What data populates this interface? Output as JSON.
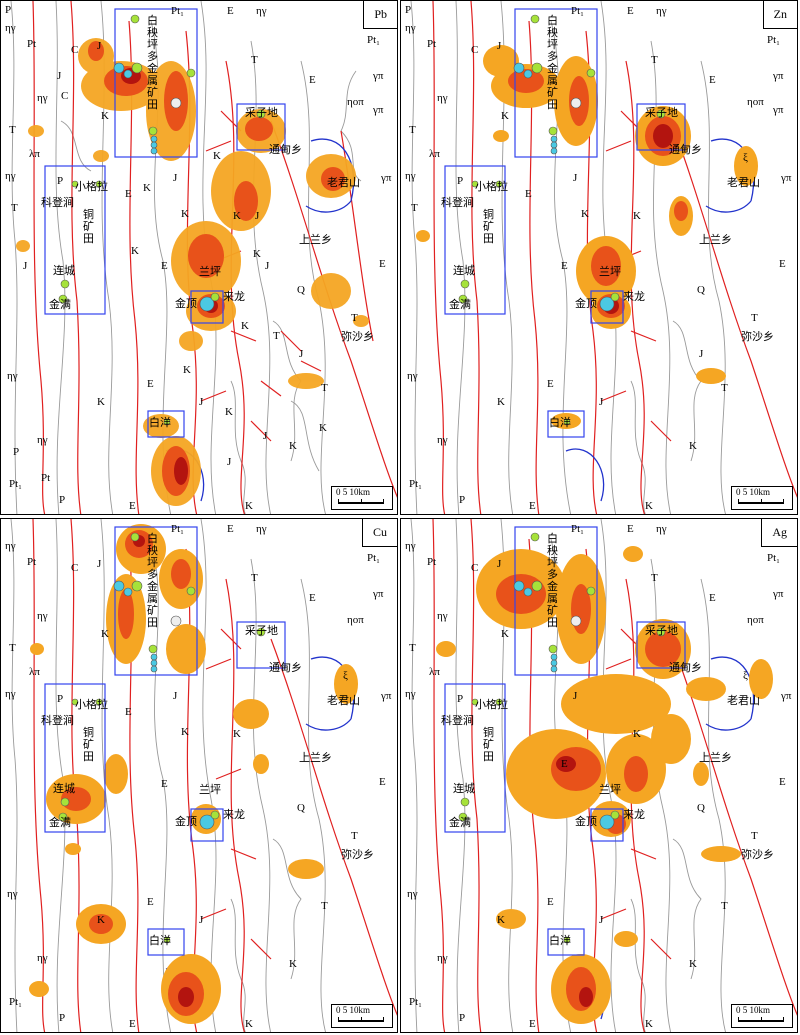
{
  "panels": [
    {
      "element": "Pb"
    },
    {
      "element": "Zn"
    },
    {
      "element": "Cu"
    },
    {
      "element": "Ag"
    }
  ],
  "scale_label": "0 5 10km",
  "place_names": {
    "baiyangping": "白秧坪多金属矿田",
    "caizidi": "采子地",
    "tongdian": "通甸乡",
    "laojunshan": "老君山",
    "xiaogela": "小格拉",
    "kedengjian": "科登涧",
    "tongkuangtian": "铜矿田",
    "shanglan": "上兰乡",
    "lanping": "兰坪",
    "laifeng": "来龙",
    "jinding": "金顶",
    "liancheng": "连城",
    "jinman": "金满",
    "mishaxiang": "弥沙乡",
    "baiyang": "白洋"
  },
  "geology_codes": {
    "Pt1": "Pt₁",
    "Pt": "Pt",
    "P": "P",
    "E": "E",
    "T": "T",
    "J": "J",
    "K": "K",
    "C": "C",
    "Q": "Q",
    "eta_gamma": "ηγ",
    "lambda_pi": "λπ",
    "gamma_pi": "γπ",
    "eta_o_pi": "ηοπ",
    "xi": "ξ"
  },
  "colors": {
    "anomaly_outer": "#f5a623",
    "anomaly_mid": "#e8521a",
    "anomaly_core": "#b3140f",
    "fault": "#e02020",
    "contact": "#9a9a9a",
    "ore_box": "#3344ee",
    "ring_structure": "#2233cc"
  }
}
